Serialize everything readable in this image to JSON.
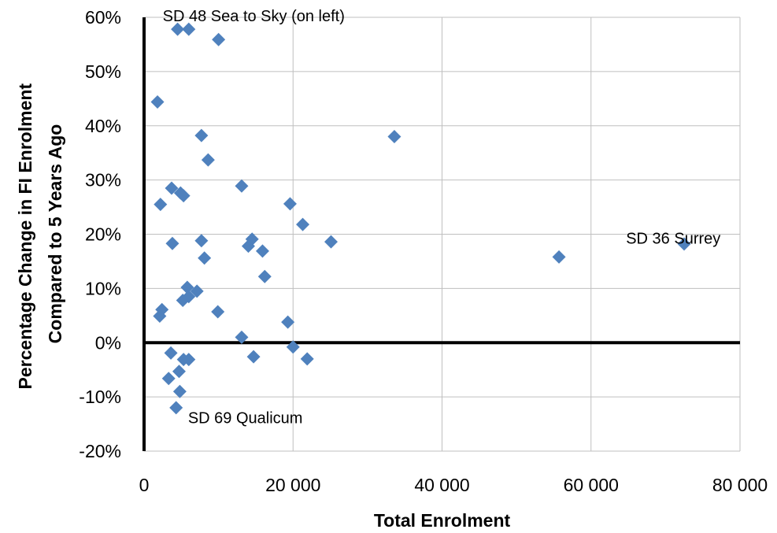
{
  "chart_data": {
    "type": "scatter",
    "title": "",
    "xlabel": "Total Enrolment",
    "ylabel_lines": [
      "Percentage Change in FI Enrolment",
      "Compared to 5 Years Ago"
    ],
    "xlim": [
      0,
      80000
    ],
    "ylim": [
      -20,
      60
    ],
    "x_ticks": [
      0,
      20000,
      40000,
      60000,
      80000
    ],
    "x_tick_labels": [
      "0",
      "20 000",
      "40 000",
      "60 000",
      "80 000"
    ],
    "y_ticks": [
      -20,
      -10,
      0,
      10,
      20,
      30,
      40,
      50,
      60
    ],
    "y_tick_labels": [
      "-20%",
      "-10%",
      "0%",
      "10%",
      "20%",
      "30%",
      "40%",
      "50%",
      "60%"
    ],
    "grid": true,
    "legend": "none",
    "marker_color": "#4f81bd",
    "series": [
      {
        "points": [
          {
            "x": 4500,
            "y": 57.8
          },
          {
            "x": 6000,
            "y": 57.8
          },
          {
            "x": 10000,
            "y": 55.9
          },
          {
            "x": 1800,
            "y": 44.4
          },
          {
            "x": 7700,
            "y": 38.2
          },
          {
            "x": 33600,
            "y": 38.0
          },
          {
            "x": 8600,
            "y": 33.7
          },
          {
            "x": 13100,
            "y": 28.9
          },
          {
            "x": 3700,
            "y": 28.5
          },
          {
            "x": 4900,
            "y": 27.6
          },
          {
            "x": 5300,
            "y": 27.1
          },
          {
            "x": 2200,
            "y": 25.5
          },
          {
            "x": 19600,
            "y": 25.6
          },
          {
            "x": 21300,
            "y": 21.8
          },
          {
            "x": 14500,
            "y": 19.1
          },
          {
            "x": 7700,
            "y": 18.8
          },
          {
            "x": 25100,
            "y": 18.6
          },
          {
            "x": 3800,
            "y": 18.3
          },
          {
            "x": 72500,
            "y": 18.2
          },
          {
            "x": 14000,
            "y": 17.8
          },
          {
            "x": 15900,
            "y": 16.9
          },
          {
            "x": 55700,
            "y": 15.8
          },
          {
            "x": 8100,
            "y": 15.6
          },
          {
            "x": 16200,
            "y": 12.2
          },
          {
            "x": 5800,
            "y": 10.2
          },
          {
            "x": 7100,
            "y": 9.5
          },
          {
            "x": 6000,
            "y": 8.5
          },
          {
            "x": 5200,
            "y": 7.8
          },
          {
            "x": 2400,
            "y": 6.1
          },
          {
            "x": 2100,
            "y": 4.9
          },
          {
            "x": 9900,
            "y": 5.7
          },
          {
            "x": 19300,
            "y": 3.8
          },
          {
            "x": 13100,
            "y": 1.0
          },
          {
            "x": 20000,
            "y": -0.8
          },
          {
            "x": 3600,
            "y": -1.9
          },
          {
            "x": 14700,
            "y": -2.6
          },
          {
            "x": 21900,
            "y": -3.0
          },
          {
            "x": 5300,
            "y": -3.1
          },
          {
            "x": 6000,
            "y": -3.1
          },
          {
            "x": 4700,
            "y": -5.3
          },
          {
            "x": 3300,
            "y": -6.6
          },
          {
            "x": 4800,
            "y": -9.0
          },
          {
            "x": 4300,
            "y": -12.0
          }
        ]
      }
    ],
    "annotations": [
      {
        "text": "SD 48 Sea to Sky (on left)",
        "x": 2500,
        "y": 60.3,
        "anchor": "start"
      },
      {
        "text": "SD 36 Surrey",
        "x": 64700,
        "y": 19.3,
        "anchor": "start"
      },
      {
        "text": "SD 69 Qualicum",
        "x": 5900,
        "y": -13.8,
        "anchor": "start"
      }
    ]
  }
}
